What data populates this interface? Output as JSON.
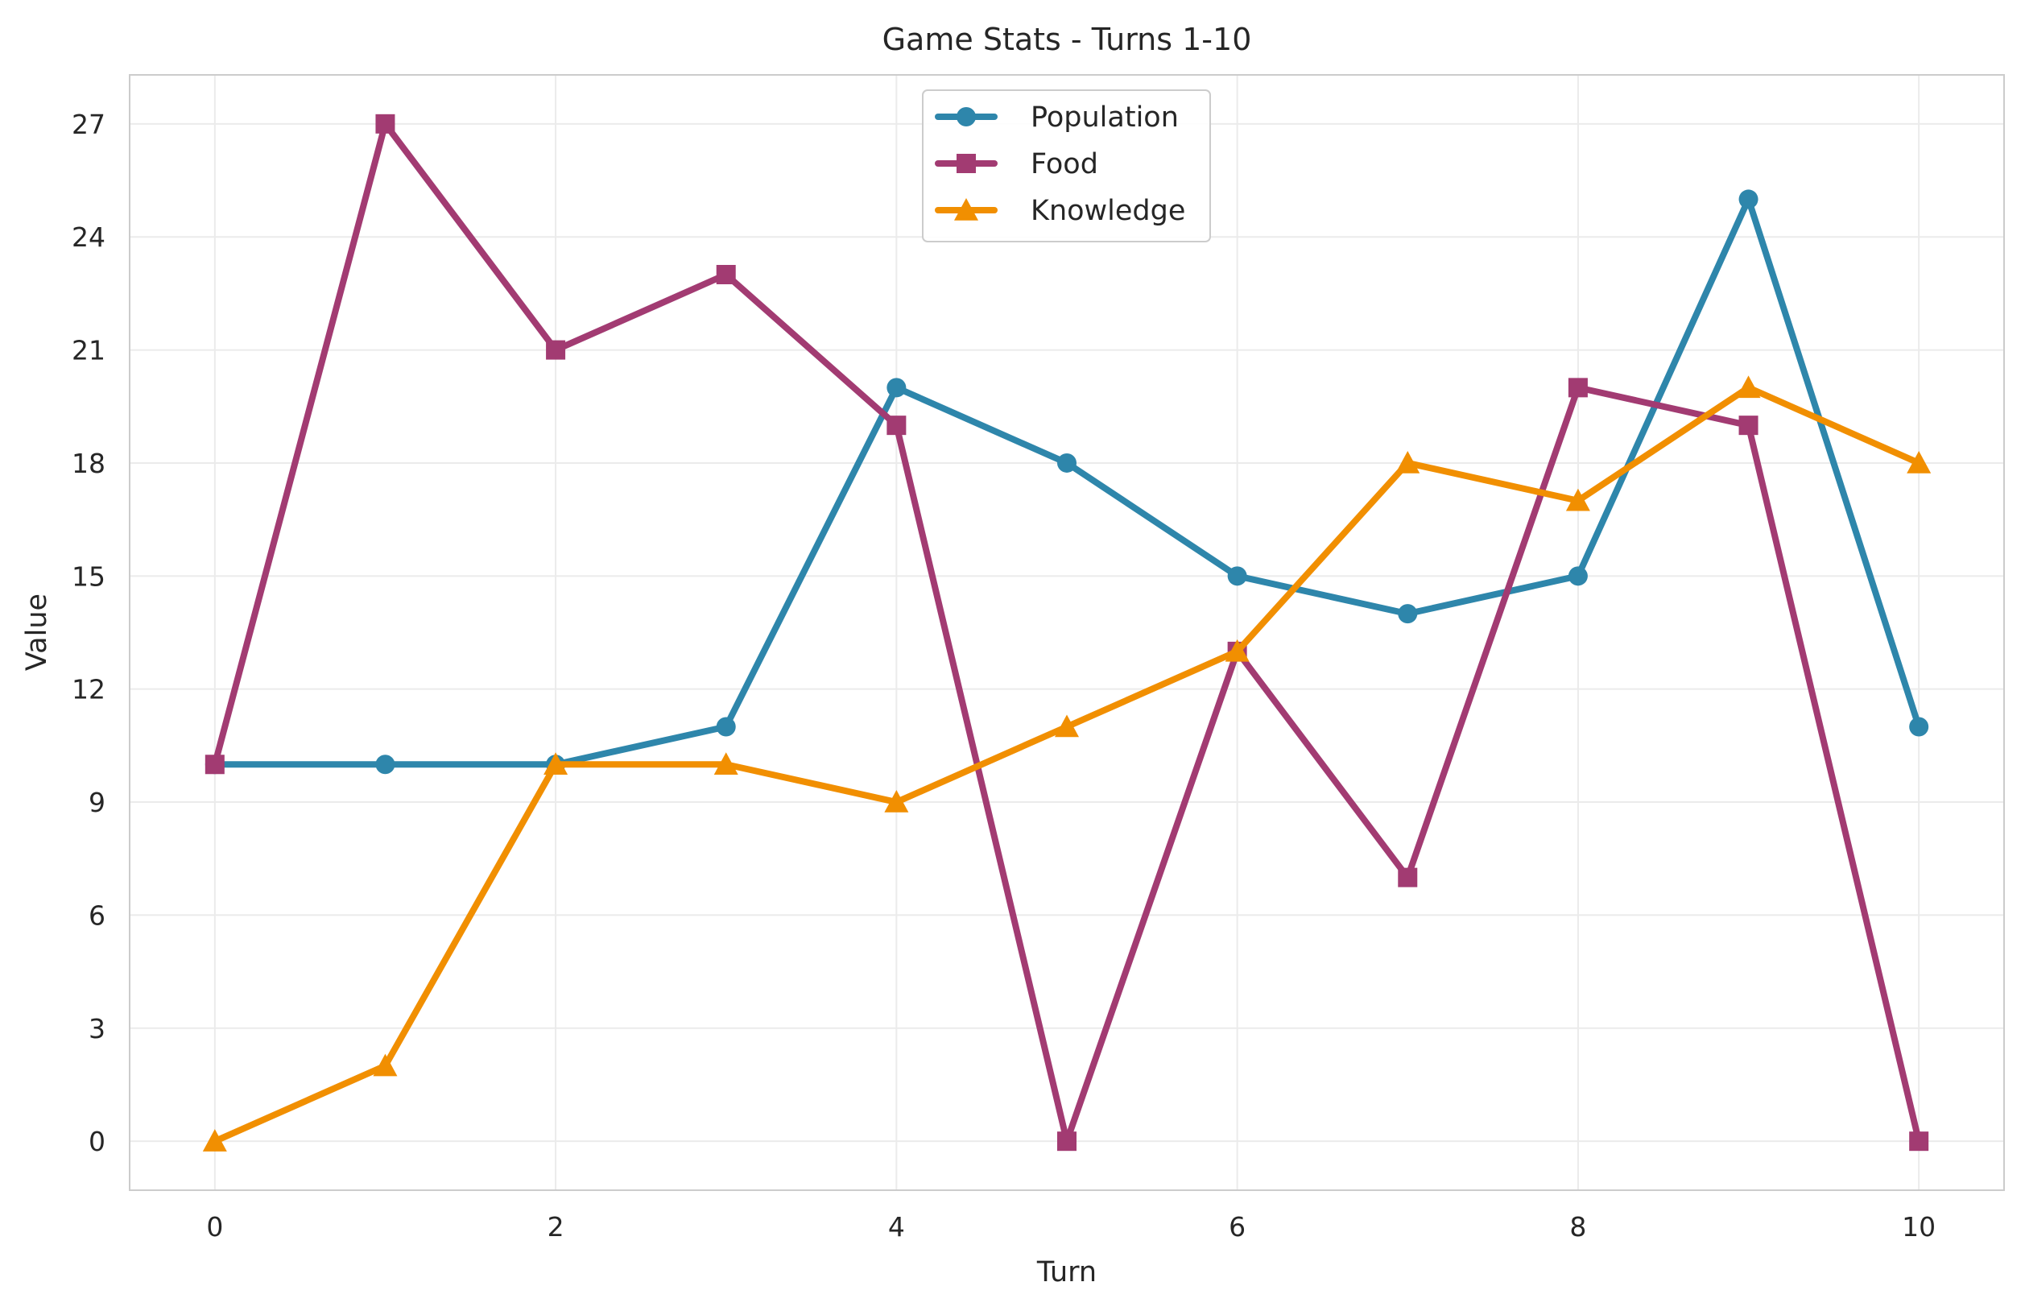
{
  "chart_data": {
    "type": "line",
    "title": "Game Stats - Turns 1-10",
    "xlabel": "Turn",
    "ylabel": "Value",
    "x": [
      0,
      1,
      2,
      3,
      4,
      5,
      6,
      7,
      8,
      9,
      10
    ],
    "xlim": [
      -0.5,
      10.5
    ],
    "ylim": [
      -1.3,
      28.3
    ],
    "xticks": [
      0,
      2,
      4,
      6,
      8,
      10
    ],
    "yticks": [
      0,
      3,
      6,
      9,
      12,
      15,
      18,
      21,
      24,
      27
    ],
    "grid": true,
    "legend_position": "top-center",
    "series": [
      {
        "name": "Population",
        "color": "#2E86AB",
        "marker": "circle",
        "values": [
          10,
          10,
          10,
          11,
          20,
          18,
          15,
          14,
          15,
          25,
          11
        ]
      },
      {
        "name": "Food",
        "color": "#A23B72",
        "marker": "square",
        "values": [
          10,
          27,
          21,
          23,
          19,
          0,
          13,
          7,
          20,
          19,
          0
        ]
      },
      {
        "name": "Knowledge",
        "color": "#F18F01",
        "marker": "triangle",
        "values": [
          0,
          2,
          10,
          10,
          9,
          11,
          13,
          18,
          17,
          20,
          18
        ]
      }
    ]
  }
}
